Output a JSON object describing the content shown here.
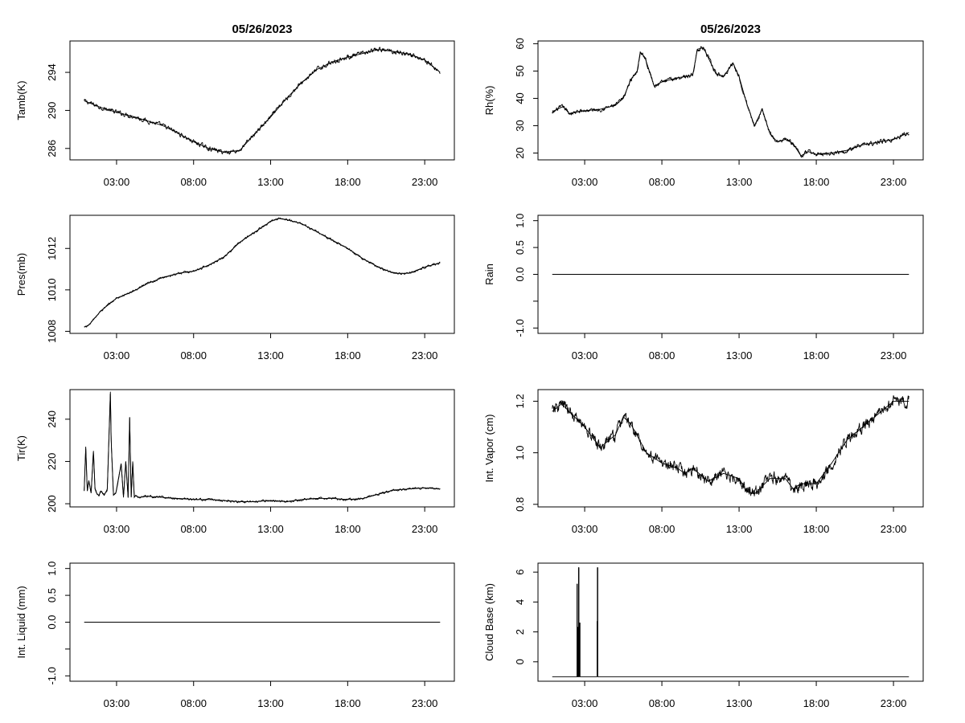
{
  "chart_data": [
    {
      "id": "tamb",
      "type": "line",
      "title": "05/26/2023",
      "xlabel": "",
      "ylabel": "Tamb(K)",
      "xlim": [
        0,
        24
      ],
      "ylim": [
        284.8,
        297.3
      ],
      "x_ticks": [
        3,
        8,
        13,
        18,
        23
      ],
      "x_tick_labels": [
        "03:00",
        "08:00",
        "13:00",
        "18:00",
        "23:00"
      ],
      "y_ticks": [
        286,
        290,
        294
      ],
      "y_tick_labels": [
        "286",
        "290",
        "294"
      ],
      "series": [
        {
          "name": "Tamb",
          "x": [
            0.9,
            2,
            3,
            4,
            5,
            6,
            7,
            8,
            9,
            10,
            11,
            12,
            13,
            14,
            15,
            16,
            17,
            18,
            19,
            20,
            21,
            22,
            23,
            24
          ],
          "values": [
            291.0,
            290.3,
            289.8,
            289.4,
            288.9,
            288.4,
            287.6,
            286.7,
            286.0,
            285.6,
            285.8,
            287.6,
            289.3,
            291.2,
            292.9,
            294.3,
            295.1,
            295.6,
            296.0,
            296.4,
            296.2,
            295.9,
            295.3,
            294.0
          ],
          "noise": 0.18
        }
      ]
    },
    {
      "id": "rh",
      "type": "line",
      "title": "05/26/2023",
      "xlabel": "",
      "ylabel": "Rh(%)",
      "xlim": [
        0,
        24
      ],
      "ylim": [
        17.5,
        61
      ],
      "x_ticks": [
        3,
        8,
        13,
        18,
        23
      ],
      "x_tick_labels": [
        "03:00",
        "08:00",
        "13:00",
        "18:00",
        "23:00"
      ],
      "y_ticks": [
        20,
        30,
        40,
        50,
        60
      ],
      "y_tick_labels": [
        "20",
        "30",
        "40",
        "50",
        "60"
      ],
      "series": [
        {
          "name": "Rh",
          "x": [
            0.9,
            1.2,
            1.6,
            2,
            3,
            4,
            5,
            5.5,
            6,
            6.4,
            6.6,
            6.9,
            7.5,
            8,
            9,
            9.5,
            10,
            10.3,
            10.7,
            11.5,
            12,
            12.6,
            13,
            13.5,
            14,
            14.5,
            15,
            15.5,
            16,
            16.5,
            17,
            17.5,
            18,
            19,
            20,
            21,
            22,
            23,
            24
          ],
          "values": [
            34.5,
            36,
            37,
            34.5,
            35.5,
            36,
            37.5,
            40,
            47,
            50,
            57,
            55,
            44.5,
            46,
            47.5,
            48,
            48.5,
            58,
            58.5,
            49,
            48,
            53,
            48,
            38,
            30,
            36,
            27,
            24,
            25,
            23.5,
            19,
            20.5,
            19.5,
            20,
            21,
            23,
            24,
            25,
            27.5
          ],
          "noise": 0.6
        }
      ]
    },
    {
      "id": "pres",
      "type": "line",
      "title": "",
      "xlabel": "",
      "ylabel": "Pres(mb)",
      "xlim": [
        0,
        24
      ],
      "ylim": [
        1007.9,
        1013.6
      ],
      "x_ticks": [
        3,
        8,
        13,
        18,
        23
      ],
      "x_tick_labels": [
        "03:00",
        "08:00",
        "13:00",
        "18:00",
        "23:00"
      ],
      "y_ticks": [
        1008,
        1010,
        1012
      ],
      "y_tick_labels": [
        "1008",
        "1010",
        "1012"
      ],
      "series": [
        {
          "name": "Pres",
          "x": [
            0.9,
            1.2,
            2,
            3,
            4,
            5,
            6,
            7,
            8,
            9,
            10,
            11,
            12,
            13,
            13.5,
            14,
            15,
            16,
            17,
            18,
            19,
            20,
            21,
            22,
            23,
            24
          ],
          "values": [
            1008.2,
            1008.3,
            1009.0,
            1009.6,
            1009.9,
            1010.3,
            1010.6,
            1010.8,
            1010.9,
            1011.2,
            1011.6,
            1012.3,
            1012.8,
            1013.3,
            1013.45,
            1013.4,
            1013.2,
            1012.8,
            1012.4,
            1012.0,
            1011.5,
            1011.1,
            1010.8,
            1010.8,
            1011.1,
            1011.3
          ],
          "noise": 0.04
        }
      ]
    },
    {
      "id": "rain",
      "type": "line",
      "title": "",
      "xlabel": "",
      "ylabel": "Rain",
      "xlim": [
        0,
        24
      ],
      "ylim": [
        -1.1,
        1.1
      ],
      "x_ticks": [
        3,
        8,
        13,
        18,
        23
      ],
      "x_tick_labels": [
        "03:00",
        "08:00",
        "13:00",
        "18:00",
        "23:00"
      ],
      "y_ticks": [
        -1.0,
        -0.5,
        0.0,
        0.5,
        1.0
      ],
      "y_tick_labels": [
        "-1.0",
        "",
        "0.0",
        "0.5",
        "1.0"
      ],
      "series": [
        {
          "name": "Rain",
          "x": [
            0.9,
            24
          ],
          "values": [
            0,
            0
          ],
          "noise": 0
        }
      ]
    },
    {
      "id": "tir",
      "type": "line",
      "title": "",
      "xlabel": "",
      "ylabel": "Tir(K)",
      "xlim": [
        0,
        24
      ],
      "ylim": [
        198.5,
        254
      ],
      "x_ticks": [
        3,
        8,
        13,
        18,
        23
      ],
      "x_tick_labels": [
        "03:00",
        "08:00",
        "13:00",
        "18:00",
        "23:00"
      ],
      "y_ticks": [
        200,
        220,
        240
      ],
      "y_tick_labels": [
        "200",
        "220",
        "240"
      ],
      "series": [
        {
          "name": "Tir",
          "x": [
            0.9,
            1.0,
            1.1,
            1.2,
            1.35,
            1.5,
            1.6,
            1.7,
            1.85,
            2.0,
            2.2,
            2.4,
            2.6,
            2.65,
            2.8,
            2.95,
            3.1,
            3.3,
            3.45,
            3.6,
            3.75,
            3.85,
            3.95,
            4.05,
            4.15,
            4.25,
            4.4,
            5,
            6,
            7,
            8,
            9,
            10,
            11,
            12,
            13,
            14,
            15,
            16,
            17,
            18,
            19,
            20,
            21,
            22,
            23,
            24
          ],
          "values": [
            206,
            227,
            206,
            211,
            205,
            225,
            207,
            205,
            204,
            206,
            204,
            207,
            253,
            230,
            204,
            205,
            211,
            219,
            203,
            220,
            203,
            241,
            203,
            220,
            203,
            204,
            203,
            203.5,
            203,
            202.5,
            202,
            202,
            201.5,
            201,
            201,
            201.5,
            201,
            202,
            202.5,
            202.5,
            202,
            202.5,
            204.5,
            206.5,
            207,
            207.5,
            207
          ],
          "noise": 0.4
        }
      ]
    },
    {
      "id": "vapor",
      "type": "line",
      "title": "",
      "xlabel": "",
      "ylabel": "Int. Vapor (cm)",
      "xlim": [
        0,
        24
      ],
      "ylim": [
        0.79,
        1.245
      ],
      "x_ticks": [
        3,
        8,
        13,
        18,
        23
      ],
      "x_tick_labels": [
        "03:00",
        "08:00",
        "13:00",
        "18:00",
        "23:00"
      ],
      "y_ticks": [
        0.8,
        1.0,
        1.2
      ],
      "y_tick_labels": [
        "0.8",
        "1.0",
        "1.2"
      ],
      "series": [
        {
          "name": "Int. Vapor",
          "x": [
            0.9,
            1.5,
            2,
            3,
            3.5,
            4,
            5,
            5.5,
            6,
            7,
            8,
            9,
            9.5,
            10,
            11,
            12,
            13,
            13.5,
            14,
            15,
            16,
            16.5,
            17,
            18,
            19,
            20,
            21,
            22,
            23,
            24
          ],
          "values": [
            1.16,
            1.19,
            1.16,
            1.1,
            1.06,
            1.02,
            1.07,
            1.14,
            1.11,
            1.0,
            0.96,
            0.94,
            0.92,
            0.94,
            0.89,
            0.92,
            0.9,
            0.85,
            0.84,
            0.9,
            0.9,
            0.86,
            0.88,
            0.88,
            0.96,
            1.05,
            1.1,
            1.15,
            1.2,
            1.2
          ],
          "noise": 0.018
        }
      ]
    },
    {
      "id": "liquid",
      "type": "line",
      "title": "",
      "xlabel": "",
      "ylabel": "Int. Liquid (mm)",
      "xlim": [
        0,
        24
      ],
      "ylim": [
        -1.1,
        1.1
      ],
      "x_ticks": [
        3,
        8,
        13,
        18,
        23
      ],
      "x_tick_labels": [
        "03:00",
        "08:00",
        "13:00",
        "18:00",
        "23:00"
      ],
      "y_ticks": [
        -1.0,
        -0.5,
        0.0,
        0.5,
        1.0
      ],
      "y_tick_labels": [
        "-1.0",
        "",
        "0.0",
        "0.5",
        "1.0"
      ],
      "series": [
        {
          "name": "Int. Liquid",
          "x": [
            0.9,
            24
          ],
          "values": [
            0,
            0
          ],
          "noise": 0
        }
      ]
    },
    {
      "id": "cloudbase",
      "type": "line",
      "title": "",
      "xlabel": "",
      "ylabel": "Cloud Base (km)",
      "xlim": [
        0,
        24
      ],
      "ylim": [
        -1.3,
        6.6
      ],
      "x_ticks": [
        3,
        8,
        13,
        18,
        23
      ],
      "x_tick_labels": [
        "03:00",
        "08:00",
        "13:00",
        "18:00",
        "23:00"
      ],
      "y_ticks": [
        0,
        2,
        4,
        6
      ],
      "y_tick_labels": [
        "0",
        "2",
        "4",
        "6"
      ],
      "series": [
        {
          "name": "Cloud Base",
          "x": [
            0.9,
            2.5,
            2.5,
            2.52,
            2.52,
            2.55,
            2.55,
            2.58,
            2.58,
            2.6,
            2.6,
            2.63,
            2.63,
            2.66,
            2.66,
            2.7,
            2.7,
            3.8,
            3.8,
            3.82,
            3.82,
            3.85,
            3.85,
            24
          ],
          "values": [
            -1,
            -1,
            5.2,
            5.2,
            -1,
            -1,
            2.3,
            2.3,
            -1,
            -1,
            6.3,
            6.3,
            -1,
            -1,
            2.6,
            2.6,
            -1,
            -1,
            2.7,
            2.7,
            6.3,
            6.3,
            -1,
            -1
          ],
          "noise": 0
        }
      ]
    }
  ]
}
